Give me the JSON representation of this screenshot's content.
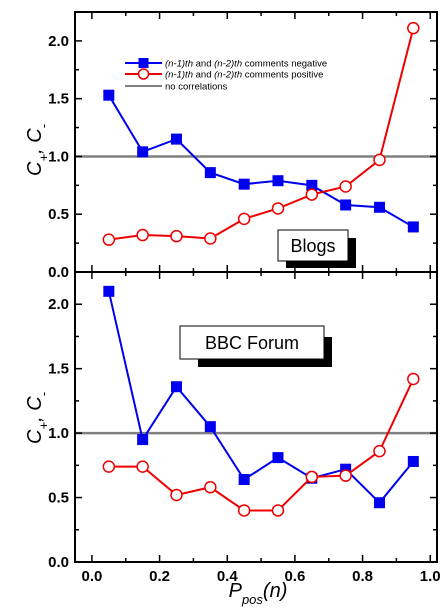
{
  "chart_data": [
    {
      "type": "line",
      "panel_label": "Blogs",
      "ylabel": "C+, C-",
      "xlim": [
        -0.05,
        1.02
      ],
      "ylim": [
        0.0,
        2.25
      ],
      "yticks": [
        "0.0",
        "0.5",
        "1.0",
        "1.5",
        "2.0"
      ],
      "x": [
        0.05,
        0.15,
        0.25,
        0.35,
        0.45,
        0.55,
        0.65,
        0.75,
        0.85,
        0.95
      ],
      "series": [
        {
          "name": "(n-1)th and (n-2)th comments negative",
          "color": "#0000ee",
          "marker": "filled-square",
          "values": [
            1.53,
            1.04,
            1.15,
            0.86,
            0.76,
            0.79,
            0.75,
            0.58,
            0.56,
            0.39
          ]
        },
        {
          "name": "(n-1)th and (n-2)th comments positive",
          "color": "#ee0000",
          "marker": "open-circle",
          "values": [
            0.28,
            0.32,
            0.31,
            0.29,
            0.46,
            0.55,
            0.67,
            0.74,
            0.97,
            2.11
          ]
        }
      ],
      "reference_line": {
        "name": "no correlations",
        "value": 1.0,
        "color": "#808080"
      },
      "legend": [
        {
          "part1": "(n-1)th",
          "part2": "and",
          "part3": "(n-2)th",
          "part4": "comments negative"
        },
        {
          "part1": "(n-1)th",
          "part2": "and",
          "part3": "(n-2)th",
          "part4": "comments positive"
        },
        {
          "part1": "no correlations"
        }
      ]
    },
    {
      "type": "line",
      "panel_label": "BBC Forum",
      "ylabel": "C+, C-",
      "xlabel": "Ppos(n)",
      "xlim": [
        -0.05,
        1.02
      ],
      "ylim": [
        0.0,
        2.25
      ],
      "xticks": [
        "0.0",
        "0.2",
        "0.4",
        "0.6",
        "0.8",
        "1.0"
      ],
      "yticks": [
        "0.0",
        "0.5",
        "1.0",
        "1.5",
        "2.0"
      ],
      "x": [
        0.05,
        0.15,
        0.25,
        0.35,
        0.45,
        0.55,
        0.65,
        0.75,
        0.85,
        0.95
      ],
      "series": [
        {
          "name": "(n-1)th and (n-2)th comments negative",
          "color": "#0000ee",
          "marker": "filled-square",
          "values": [
            2.1,
            0.95,
            1.36,
            1.05,
            0.64,
            0.81,
            0.65,
            0.72,
            0.46,
            0.78
          ]
        },
        {
          "name": "(n-1)th and (n-2)th comments positive",
          "color": "#ee0000",
          "marker": "open-circle",
          "values": [
            0.74,
            0.74,
            0.52,
            0.58,
            0.4,
            0.4,
            0.66,
            0.67,
            0.86,
            1.42
          ]
        }
      ],
      "reference_line": {
        "name": "no correlations",
        "value": 1.0,
        "color": "#808080"
      }
    }
  ]
}
